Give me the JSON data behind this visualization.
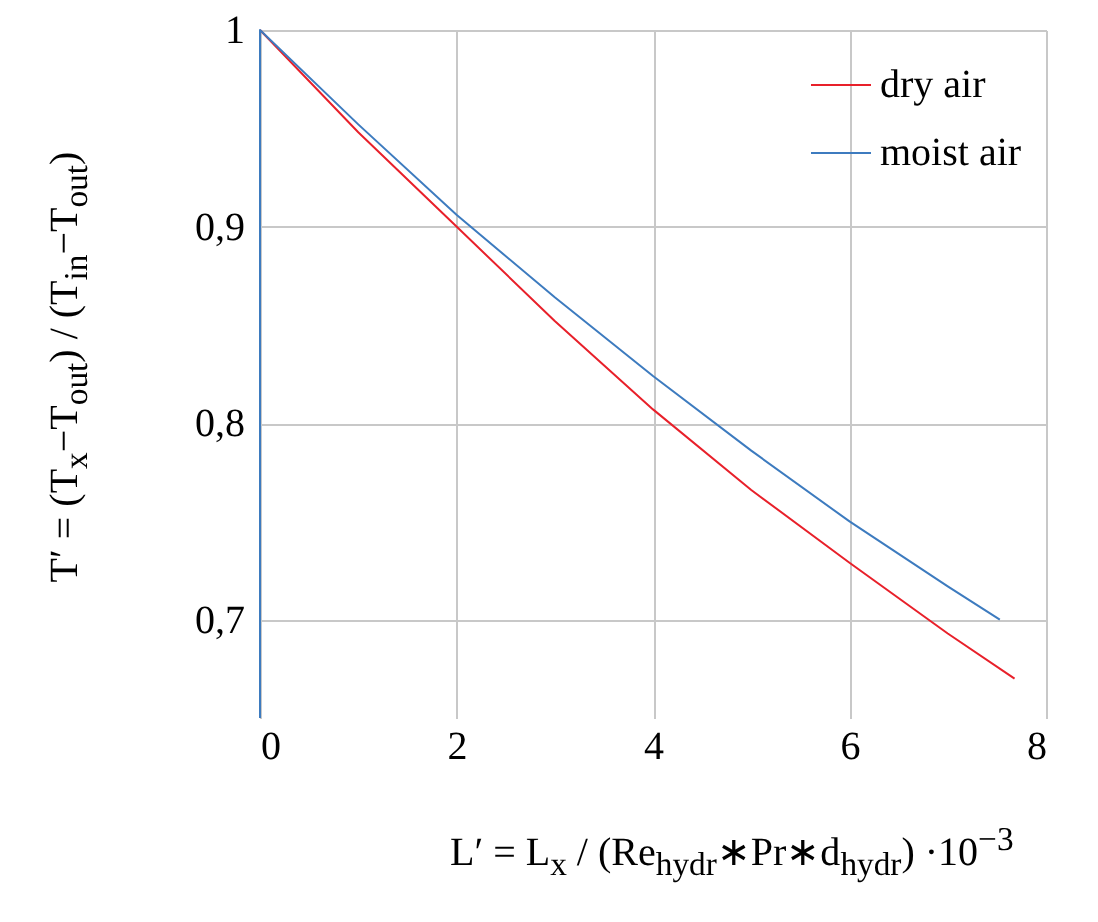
{
  "chart_data": {
    "type": "line",
    "xlabel": "L′ = L$_{x}$ / (Re$_{hydr}$∗Pr∗d$_{hydr}$)   ·10$^{−3}$",
    "ylabel": "T′ = (T$_{x}$−T$_{out}$) / (T$_{in}$−T$_{out}$)",
    "series": [
      {
        "name": "dry air",
        "color": "#e8202a",
        "x": [
          0,
          1,
          2,
          3,
          4,
          5,
          6,
          7,
          7.68
        ],
        "values": [
          1,
          0.948,
          0.9,
          0.852,
          0.807,
          0.766,
          0.729,
          0.693,
          0.67
        ]
      },
      {
        "name": "moist air",
        "color": "#3d7bbf",
        "x": [
          0,
          0,
          1,
          2,
          3,
          4,
          5,
          6,
          7,
          7.53
        ],
        "values": [
          0.65,
          1,
          0.952,
          0.906,
          0.864,
          0.824,
          0.786,
          0.75,
          0.717,
          0.7
        ]
      }
    ],
    "xlim": [
      0,
      8
    ],
    "ylim": [
      0.65,
      1
    ],
    "xticks": [
      0,
      2,
      4,
      6,
      8
    ],
    "yticks": [
      {
        "value": 0.7,
        "label": "0,7"
      },
      {
        "value": 0.8,
        "label": "0,8"
      },
      {
        "value": 0.9,
        "label": "0,9"
      },
      1
    ],
    "grid": true,
    "legend": "top right",
    "marker": "none",
    "line_style": "solid"
  }
}
